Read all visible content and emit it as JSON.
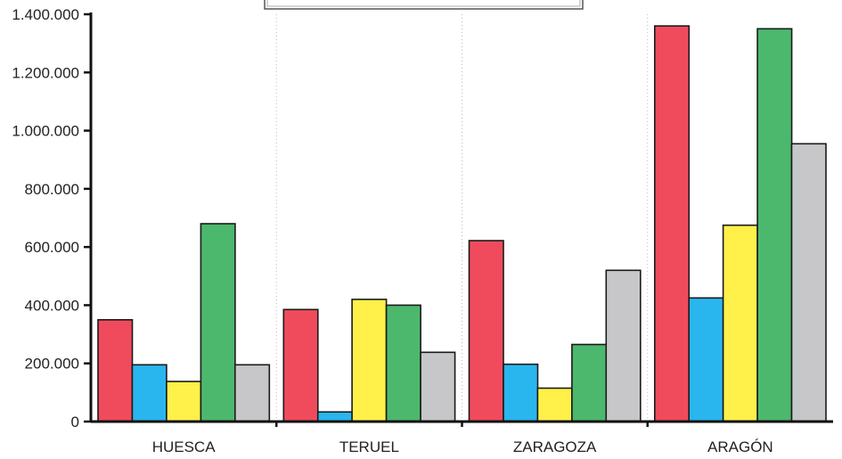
{
  "chart_data": {
    "type": "bar",
    "categories": [
      "HUESCA",
      "TERUEL",
      "ZARAGOZA",
      "ARAGÓN"
    ],
    "series": [
      {
        "color": "#f04b5d",
        "values": [
          350000,
          385000,
          622000,
          1360000
        ]
      },
      {
        "color": "#29b6ee",
        "values": [
          195000,
          33000,
          197000,
          425000
        ]
      },
      {
        "color": "#fff04a",
        "values": [
          138000,
          420000,
          115000,
          675000
        ]
      },
      {
        "color": "#4cb86d",
        "values": [
          680000,
          400000,
          265000,
          1350000
        ]
      },
      {
        "color": "#c7c7c9",
        "values": [
          195000,
          238000,
          520000,
          955000
        ]
      }
    ],
    "yticks": [
      "0",
      "200.000",
      "400.000",
      "600.000",
      "800.000",
      "1.000.000",
      "1.200.000",
      "1.400.000"
    ],
    "ylim": [
      0,
      1400000
    ],
    "grid": false,
    "legend": "top (partially cut off)"
  }
}
